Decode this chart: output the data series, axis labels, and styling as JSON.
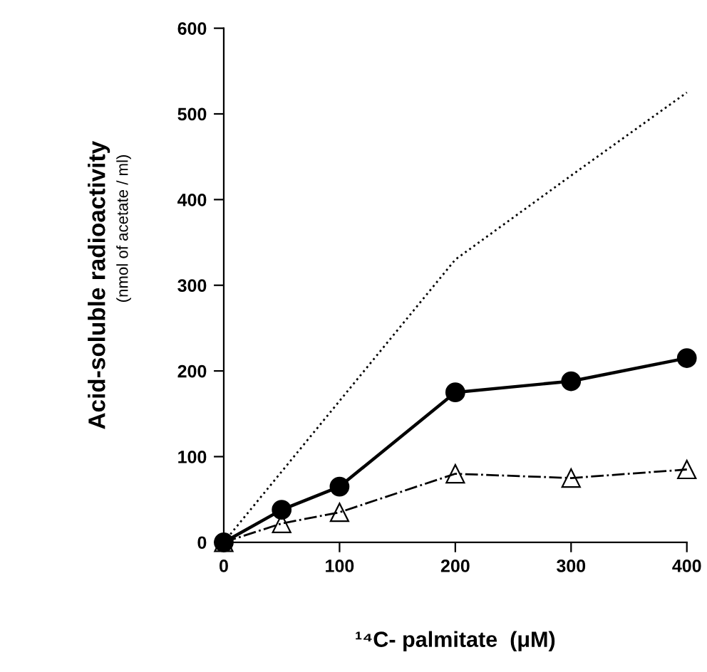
{
  "chart_data": {
    "type": "line",
    "xlabel": "¹⁴C- palmitate  (μM)",
    "ylabel": "Acid-soluble radioactivity",
    "annotations": [
      "(nmol of acetate / ml)"
    ],
    "xlim": [
      0,
      400
    ],
    "ylim": [
      0,
      600
    ],
    "xticks": [
      0,
      100,
      200,
      300,
      400
    ],
    "yticks": [
      0,
      100,
      200,
      300,
      400,
      500,
      600
    ],
    "grid": false,
    "legend": false,
    "series": [
      {
        "color": "#000000",
        "x": [
          0,
          50,
          100,
          200,
          300,
          400
        ],
        "values": [
          0,
          38,
          65,
          175,
          188,
          215
        ],
        "line_style": "solid",
        "marker": "circle"
      },
      {
        "color": "#000000",
        "x": [
          0,
          50,
          100,
          200,
          300,
          400
        ],
        "values": [
          0,
          22,
          35,
          80,
          75,
          85
        ],
        "line_style": "dashdot",
        "marker": "triangle"
      },
      {
        "color": "#000000",
        "x": [
          0,
          200,
          300,
          400
        ],
        "values": [
          0,
          330,
          428,
          525
        ],
        "line_style": "dotted",
        "marker": "none"
      }
    ]
  }
}
